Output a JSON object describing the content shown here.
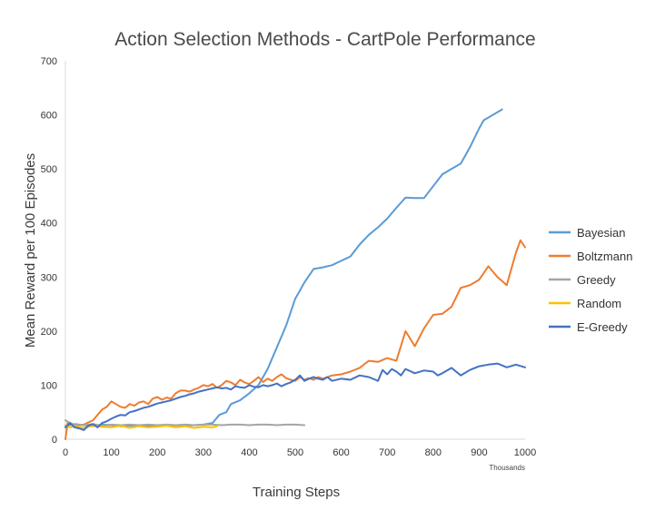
{
  "chart_data": {
    "type": "line",
    "title": "Action Selection Methods - CartPole Performance",
    "xlabel": "Training Steps",
    "ylabel": "Mean Reward per 100 Episodes",
    "x_unit": "Thousands",
    "xlim": [
      0,
      1000
    ],
    "ylim": [
      0,
      700
    ],
    "xticks": [
      0,
      100,
      200,
      300,
      400,
      500,
      600,
      700,
      800,
      900,
      1000
    ],
    "yticks": [
      0,
      100,
      200,
      300,
      400,
      500,
      600,
      700
    ],
    "grid": {
      "x": false,
      "y": false
    },
    "legend": "right",
    "series": [
      {
        "name": "Bayesian",
        "color": "#5b9bd5",
        "points": [
          [
            0,
            25
          ],
          [
            20,
            28
          ],
          [
            40,
            26
          ],
          [
            60,
            24
          ],
          [
            80,
            27
          ],
          [
            100,
            26
          ],
          [
            120,
            24
          ],
          [
            140,
            25
          ],
          [
            160,
            26
          ],
          [
            180,
            24
          ],
          [
            200,
            25
          ],
          [
            220,
            25
          ],
          [
            240,
            26
          ],
          [
            260,
            25
          ],
          [
            280,
            26
          ],
          [
            300,
            27
          ],
          [
            320,
            30
          ],
          [
            335,
            45
          ],
          [
            350,
            50
          ],
          [
            360,
            65
          ],
          [
            380,
            72
          ],
          [
            400,
            85
          ],
          [
            420,
            100
          ],
          [
            440,
            130
          ],
          [
            460,
            170
          ],
          [
            480,
            210
          ],
          [
            500,
            260
          ],
          [
            510,
            275
          ],
          [
            520,
            290
          ],
          [
            540,
            315
          ],
          [
            560,
            318
          ],
          [
            580,
            322
          ],
          [
            600,
            330
          ],
          [
            620,
            338
          ],
          [
            640,
            360
          ],
          [
            660,
            378
          ],
          [
            680,
            392
          ],
          [
            700,
            408
          ],
          [
            720,
            428
          ],
          [
            740,
            447
          ],
          [
            760,
            446
          ],
          [
            780,
            446
          ],
          [
            800,
            468
          ],
          [
            820,
            490
          ],
          [
            840,
            500
          ],
          [
            860,
            510
          ],
          [
            880,
            540
          ],
          [
            900,
            575
          ],
          [
            910,
            590
          ],
          [
            950,
            610
          ]
        ]
      },
      {
        "name": "Boltzmann",
        "color": "#ed7d31",
        "points": [
          [
            0,
            0
          ],
          [
            5,
            30
          ],
          [
            20,
            25
          ],
          [
            40,
            27
          ],
          [
            60,
            35
          ],
          [
            80,
            55
          ],
          [
            90,
            60
          ],
          [
            100,
            70
          ],
          [
            110,
            65
          ],
          [
            120,
            60
          ],
          [
            130,
            58
          ],
          [
            140,
            65
          ],
          [
            150,
            62
          ],
          [
            160,
            68
          ],
          [
            170,
            70
          ],
          [
            180,
            65
          ],
          [
            190,
            75
          ],
          [
            200,
            78
          ],
          [
            210,
            73
          ],
          [
            220,
            77
          ],
          [
            230,
            75
          ],
          [
            240,
            85
          ],
          [
            250,
            90
          ],
          [
            260,
            90
          ],
          [
            270,
            88
          ],
          [
            280,
            92
          ],
          [
            290,
            95
          ],
          [
            300,
            100
          ],
          [
            310,
            98
          ],
          [
            320,
            102
          ],
          [
            330,
            95
          ],
          [
            340,
            100
          ],
          [
            350,
            108
          ],
          [
            360,
            105
          ],
          [
            370,
            100
          ],
          [
            380,
            110
          ],
          [
            390,
            105
          ],
          [
            400,
            102
          ],
          [
            410,
            108
          ],
          [
            420,
            115
          ],
          [
            430,
            106
          ],
          [
            440,
            112
          ],
          [
            450,
            108
          ],
          [
            460,
            115
          ],
          [
            470,
            120
          ],
          [
            480,
            113
          ],
          [
            490,
            110
          ],
          [
            500,
            108
          ],
          [
            510,
            115
          ],
          [
            520,
            110
          ],
          [
            530,
            113
          ],
          [
            540,
            110
          ],
          [
            550,
            115
          ],
          [
            560,
            112
          ],
          [
            580,
            118
          ],
          [
            600,
            120
          ],
          [
            620,
            125
          ],
          [
            640,
            132
          ],
          [
            660,
            145
          ],
          [
            680,
            143
          ],
          [
            700,
            150
          ],
          [
            720,
            145
          ],
          [
            740,
            200
          ],
          [
            760,
            172
          ],
          [
            780,
            205
          ],
          [
            800,
            230
          ],
          [
            820,
            232
          ],
          [
            840,
            245
          ],
          [
            860,
            280
          ],
          [
            880,
            285
          ],
          [
            900,
            295
          ],
          [
            920,
            320
          ],
          [
            940,
            300
          ],
          [
            960,
            285
          ],
          [
            980,
            345
          ],
          [
            990,
            368
          ],
          [
            1000,
            355
          ]
        ]
      },
      {
        "name": "Greedy",
        "color": "#a5a5a5",
        "points": [
          [
            0,
            35
          ],
          [
            10,
            30
          ],
          [
            20,
            27
          ],
          [
            40,
            26
          ],
          [
            60,
            28
          ],
          [
            80,
            25
          ],
          [
            100,
            27
          ],
          [
            120,
            26
          ],
          [
            140,
            27
          ],
          [
            160,
            26
          ],
          [
            180,
            27
          ],
          [
            200,
            26
          ],
          [
            220,
            27
          ],
          [
            240,
            26
          ],
          [
            260,
            27
          ],
          [
            280,
            26
          ],
          [
            300,
            27
          ],
          [
            320,
            27
          ],
          [
            340,
            26
          ],
          [
            360,
            27
          ],
          [
            380,
            27
          ],
          [
            400,
            26
          ],
          [
            420,
            27
          ],
          [
            440,
            27
          ],
          [
            460,
            26
          ],
          [
            480,
            27
          ],
          [
            500,
            27
          ],
          [
            520,
            26
          ]
        ]
      },
      {
        "name": "Random",
        "color": "#ffc000",
        "points": [
          [
            0,
            26
          ],
          [
            10,
            22
          ],
          [
            20,
            24
          ],
          [
            40,
            21
          ],
          [
            60,
            25
          ],
          [
            80,
            23
          ],
          [
            100,
            22
          ],
          [
            120,
            25
          ],
          [
            140,
            21
          ],
          [
            160,
            24
          ],
          [
            180,
            22
          ],
          [
            200,
            23
          ],
          [
            220,
            25
          ],
          [
            240,
            22
          ],
          [
            260,
            24
          ],
          [
            280,
            21
          ],
          [
            300,
            23
          ],
          [
            320,
            22
          ],
          [
            330,
            24
          ]
        ]
      },
      {
        "name": "E-Greedy",
        "color": "#4472c4",
        "points": [
          [
            0,
            22
          ],
          [
            10,
            30
          ],
          [
            20,
            22
          ],
          [
            30,
            20
          ],
          [
            40,
            17
          ],
          [
            50,
            25
          ],
          [
            60,
            28
          ],
          [
            70,
            22
          ],
          [
            80,
            30
          ],
          [
            90,
            33
          ],
          [
            100,
            38
          ],
          [
            110,
            42
          ],
          [
            120,
            45
          ],
          [
            130,
            44
          ],
          [
            140,
            50
          ],
          [
            150,
            52
          ],
          [
            160,
            55
          ],
          [
            170,
            58
          ],
          [
            180,
            60
          ],
          [
            190,
            63
          ],
          [
            200,
            66
          ],
          [
            210,
            68
          ],
          [
            220,
            70
          ],
          [
            230,
            72
          ],
          [
            240,
            75
          ],
          [
            250,
            78
          ],
          [
            260,
            80
          ],
          [
            270,
            83
          ],
          [
            280,
            85
          ],
          [
            290,
            88
          ],
          [
            300,
            90
          ],
          [
            310,
            92
          ],
          [
            320,
            94
          ],
          [
            330,
            96
          ],
          [
            340,
            94
          ],
          [
            350,
            95
          ],
          [
            360,
            92
          ],
          [
            370,
            98
          ],
          [
            380,
            96
          ],
          [
            390,
            95
          ],
          [
            400,
            100
          ],
          [
            410,
            97
          ],
          [
            420,
            96
          ],
          [
            430,
            100
          ],
          [
            440,
            98
          ],
          [
            450,
            100
          ],
          [
            460,
            103
          ],
          [
            470,
            98
          ],
          [
            480,
            102
          ],
          [
            490,
            105
          ],
          [
            500,
            110
          ],
          [
            510,
            118
          ],
          [
            520,
            108
          ],
          [
            530,
            112
          ],
          [
            540,
            115
          ],
          [
            550,
            112
          ],
          [
            560,
            110
          ],
          [
            570,
            115
          ],
          [
            580,
            108
          ],
          [
            600,
            112
          ],
          [
            620,
            110
          ],
          [
            640,
            118
          ],
          [
            660,
            115
          ],
          [
            680,
            108
          ],
          [
            690,
            128
          ],
          [
            700,
            120
          ],
          [
            710,
            130
          ],
          [
            720,
            125
          ],
          [
            730,
            118
          ],
          [
            740,
            130
          ],
          [
            760,
            122
          ],
          [
            780,
            127
          ],
          [
            800,
            125
          ],
          [
            810,
            118
          ],
          [
            820,
            122
          ],
          [
            840,
            132
          ],
          [
            860,
            118
          ],
          [
            880,
            128
          ],
          [
            900,
            135
          ],
          [
            920,
            138
          ],
          [
            940,
            140
          ],
          [
            960,
            133
          ],
          [
            980,
            138
          ],
          [
            1000,
            133
          ]
        ]
      }
    ]
  }
}
